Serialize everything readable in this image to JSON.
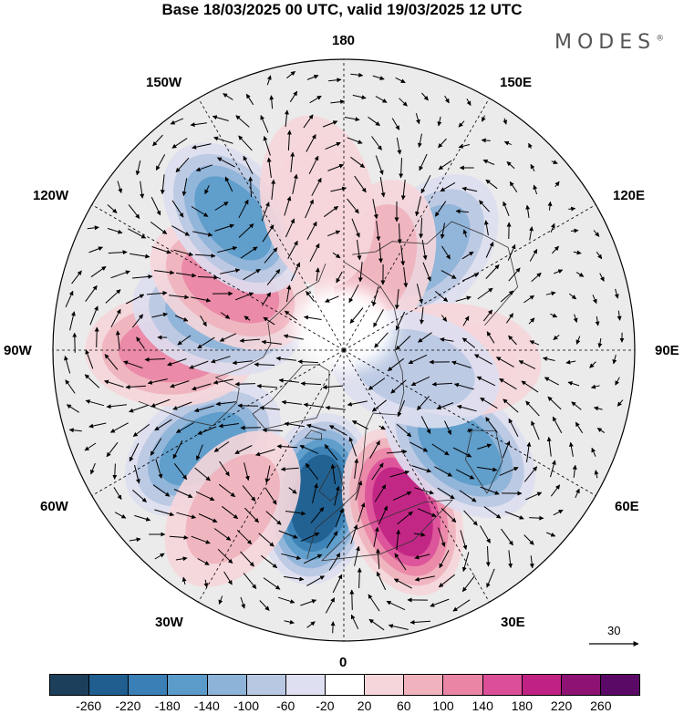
{
  "title": "Base 18/03/2025 00 UTC, valid 19/03/2025 12 UTC",
  "brand": {
    "name": "MODES",
    "mark": "®"
  },
  "longitude_labels": {
    "lon_180": "180",
    "lon_150E": "150E",
    "lon_120E": "120E",
    "lon_90E": "90E",
    "lon_60E": "60E",
    "lon_30E": "30E",
    "lon_0": "0",
    "lon_30W": "30W",
    "lon_60W": "60W",
    "lon_90W": "90W",
    "lon_120W": "120W",
    "lon_150W": "150W"
  },
  "reference_vector": {
    "label": "30",
    "value": 30
  },
  "colorbar": {
    "ticks": [
      "-260",
      "-220",
      "-180",
      "-140",
      "-100",
      "-60",
      "-20",
      "20",
      "60",
      "100",
      "140",
      "180",
      "220",
      "260"
    ],
    "colors": [
      "#1c3f5c",
      "#1f5e8f",
      "#3a7fb5",
      "#5b9bc9",
      "#8db3d8",
      "#b9c8e2",
      "#dedff0",
      "#ffffff",
      "#f6d6da",
      "#f0b3bd",
      "#ea85a6",
      "#dc4f98",
      "#c02284",
      "#8e1273",
      "#5a0a66"
    ]
  },
  "chart_data": {
    "type": "heatmap",
    "projection": "north-polar-stereographic",
    "field": "shaded anomaly with wind vectors",
    "anomaly_centers": [
      {
        "lon": -10,
        "lat": 50,
        "value": -230
      },
      {
        "lon": 20,
        "lat": 45,
        "value": 190
      },
      {
        "lon": 50,
        "lat": 50,
        "value": -160
      },
      {
        "lon": -55,
        "lat": 45,
        "value": -150
      },
      {
        "lon": -35,
        "lat": 40,
        "value": 70
      },
      {
        "lon": -90,
        "lat": 45,
        "value": 110
      },
      {
        "lon": -105,
        "lat": 55,
        "value": -100
      },
      {
        "lon": -120,
        "lat": 55,
        "value": 130
      },
      {
        "lon": -140,
        "lat": 45,
        "value": -160
      },
      {
        "lon": 140,
        "lat": 55,
        "value": -130
      },
      {
        "lon": 160,
        "lat": 65,
        "value": 90
      },
      {
        "lon": -170,
        "lat": 50,
        "value": 60
      },
      {
        "lon": 85,
        "lat": 60,
        "value": 60
      },
      {
        "lon": 75,
        "lat": 70,
        "value": -80
      }
    ]
  }
}
